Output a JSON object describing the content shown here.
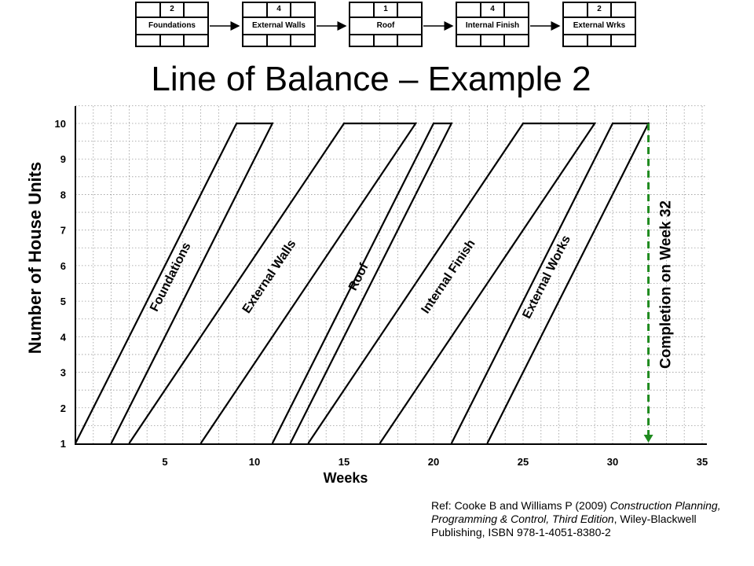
{
  "title": "Line of Balance – Example 2",
  "network": [
    {
      "name": "Foundations",
      "duration": "2"
    },
    {
      "name": "External Walls",
      "duration": "4"
    },
    {
      "name": "Roof",
      "duration": "1"
    },
    {
      "name": "Internal Finish",
      "duration": "4"
    },
    {
      "name": "External Wrks",
      "duration": "2"
    }
  ],
  "chart_data": {
    "type": "line",
    "title": "Line of Balance – Example 2",
    "xlabel": "Weeks",
    "ylabel": "Number of House Units",
    "xlim": [
      0,
      35
    ],
    "ylim": [
      1,
      10
    ],
    "x_ticks": [
      5,
      10,
      15,
      20,
      25,
      30,
      35
    ],
    "y_ticks": [
      1,
      2,
      3,
      4,
      5,
      6,
      7,
      8,
      9,
      10
    ],
    "grid": true,
    "activities": [
      {
        "name": "Foundations",
        "start_bottom": 0,
        "finish_bottom": 2,
        "start_top": 9,
        "finish_top": 11
      },
      {
        "name": "External Walls",
        "start_bottom": 3,
        "finish_bottom": 7,
        "start_top": 15,
        "finish_top": 19
      },
      {
        "name": "Roof",
        "start_bottom": 11,
        "finish_bottom": 12,
        "start_top": 20,
        "finish_top": 21
      },
      {
        "name": "Internal Finish",
        "start_bottom": 13,
        "finish_bottom": 17,
        "start_top": 25,
        "finish_top": 29
      },
      {
        "name": "External Works",
        "start_bottom": 21,
        "finish_bottom": 23,
        "start_top": 30,
        "finish_top": 32
      }
    ],
    "completion": {
      "week": 32,
      "label": "Completion on Week 32",
      "color": "#1f8a1f"
    }
  },
  "reference": {
    "prefix": "Ref: Cooke B and Williams P (2009) ",
    "book_title": "Construction Planning, Programming & Control, Third Edition",
    "suffix": ", Wiley-Blackwell Publishing, ISBN 978-1-4051-8380-2"
  }
}
